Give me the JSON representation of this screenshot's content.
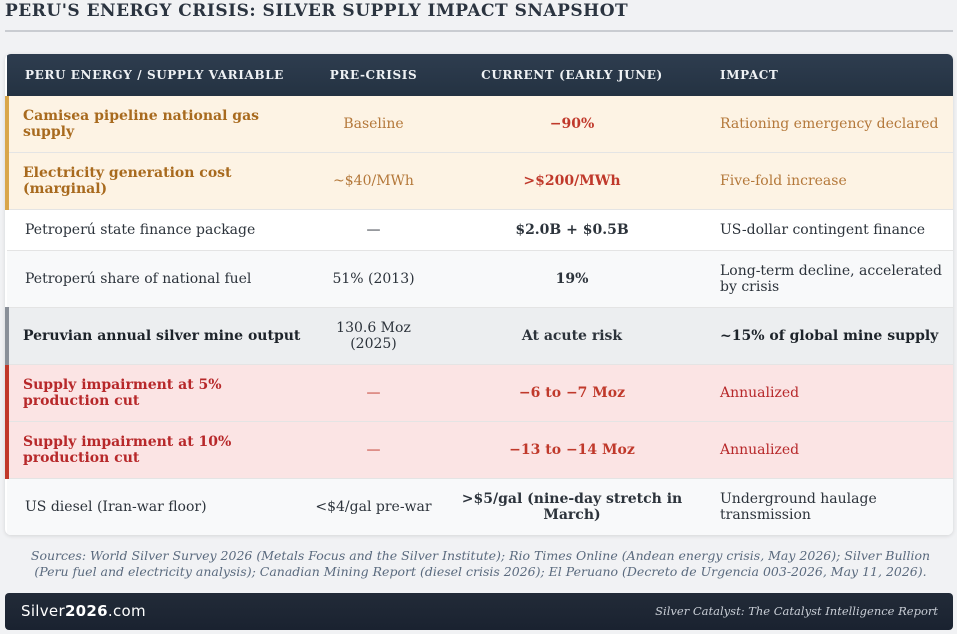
{
  "title": "PERU'S ENERGY CRISIS: SILVER SUPPLY IMPACT SNAPSHOT",
  "table": {
    "headers": [
      "PERU ENERGY / SUPPLY VARIABLE",
      "PRE-CRISIS",
      "CURRENT (EARLY JUNE)",
      "IMPACT"
    ],
    "rows": [
      {
        "variable": "Camisea pipeline national gas supply",
        "pre": "Baseline",
        "current": "−90%",
        "impact": "Rationing emergency declared"
      },
      {
        "variable": "Electricity generation cost (marginal)",
        "pre": "~$40/MWh",
        "current": ">$200/MWh",
        "impact": "Five-fold increase"
      },
      {
        "variable": "Petroperú state finance package",
        "pre": "—",
        "current": "$2.0B + $0.5B",
        "impact": "US-dollar contingent finance"
      },
      {
        "variable": "Petroperú share of national fuel",
        "pre": "51% (2013)",
        "current": "19%",
        "impact": "Long-term decline, accelerated by crisis"
      },
      {
        "variable": "Peruvian annual silver mine output",
        "pre": "130.6 Moz (2025)",
        "current": "At acute risk",
        "impact": "~15% of global mine supply"
      },
      {
        "variable": "Supply impairment at 5% production cut",
        "pre": "—",
        "current": "−6 to −7 Moz",
        "impact": "Annualized"
      },
      {
        "variable": "Supply impairment at 10% production cut",
        "pre": "—",
        "current": "−13 to −14 Moz",
        "impact": "Annualized"
      },
      {
        "variable": "US diesel (Iran-war floor)",
        "pre": "<$4/gal pre-war",
        "current": ">$5/gal (nine-day stretch in March)",
        "impact": "Underground haulage transmission"
      }
    ]
  },
  "sources": "Sources: World Silver Survey 2026 (Metals Focus and the Silver Institute); Rio Times Online (Andean energy crisis, May 2026); Silver Bullion (Peru fuel and electricity analysis); Canadian Mining Report (diesel crisis 2026); El Peruano (Decreto de Urgencia 003-2026, May 11, 2026).",
  "footer": {
    "brand_prefix": "Silver",
    "brand_bold": "2026",
    "brand_suffix": ".com",
    "tagline": "Silver Catalyst: The Catalyst Intelligence Report"
  }
}
